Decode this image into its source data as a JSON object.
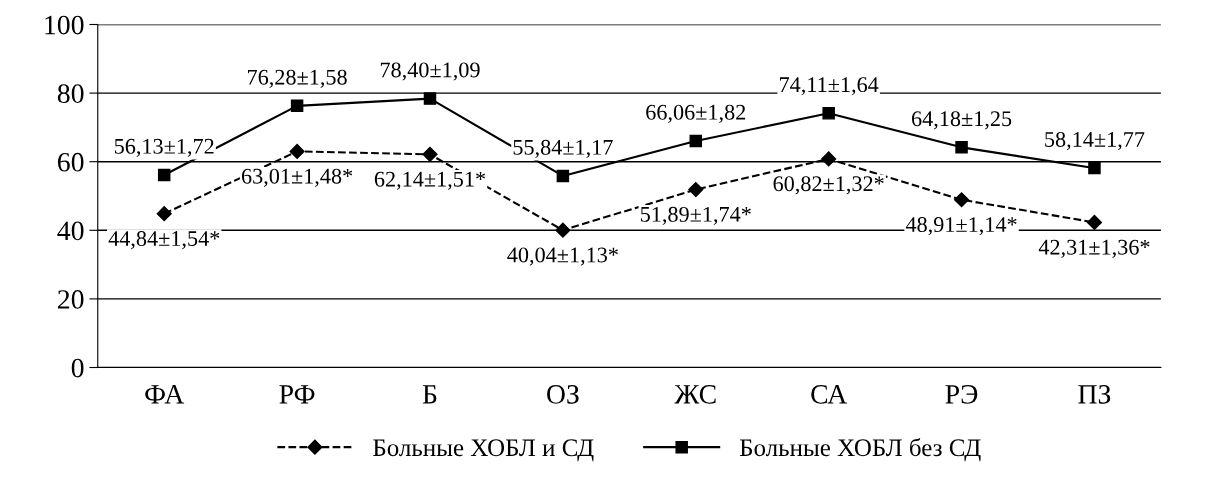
{
  "chart_data": {
    "type": "line",
    "categories": [
      "ФА",
      "РФ",
      "Б",
      "ОЗ",
      "ЖС",
      "СА",
      "РЭ",
      "ПЗ"
    ],
    "series": [
      {
        "name": "Больные ХОБЛ и СД",
        "color": "#000000",
        "marker": "diamond",
        "line_style": "dashed",
        "values": [
          44.84,
          63.01,
          62.14,
          40.04,
          51.89,
          60.82,
          48.91,
          42.31
        ],
        "value_labels": [
          "44,84±1,54*",
          "63,01±1,48*",
          "62,14±1,51*",
          "40,04±1,13*",
          "51,89±1,74*",
          "60,82±1,32*",
          "48,91±1,14*",
          "42,31±1,36*"
        ]
      },
      {
        "name": "Больные ХОБЛ без СД",
        "color": "#000000",
        "marker": "square",
        "line_style": "solid",
        "values": [
          56.13,
          76.28,
          78.4,
          55.84,
          66.06,
          74.11,
          64.18,
          58.14
        ],
        "value_labels": [
          "56,13±1,72",
          "76,28±1,58",
          "78,40±1,09",
          "55,84±1,17",
          "66,06±1,82",
          "74,11±1,64",
          "64,18±1,25",
          "58,14±1,77"
        ]
      }
    ],
    "ylim": [
      0,
      100
    ],
    "yticks": [
      0,
      20,
      40,
      60,
      80,
      100
    ],
    "grid": "y",
    "legend": "bottom"
  }
}
